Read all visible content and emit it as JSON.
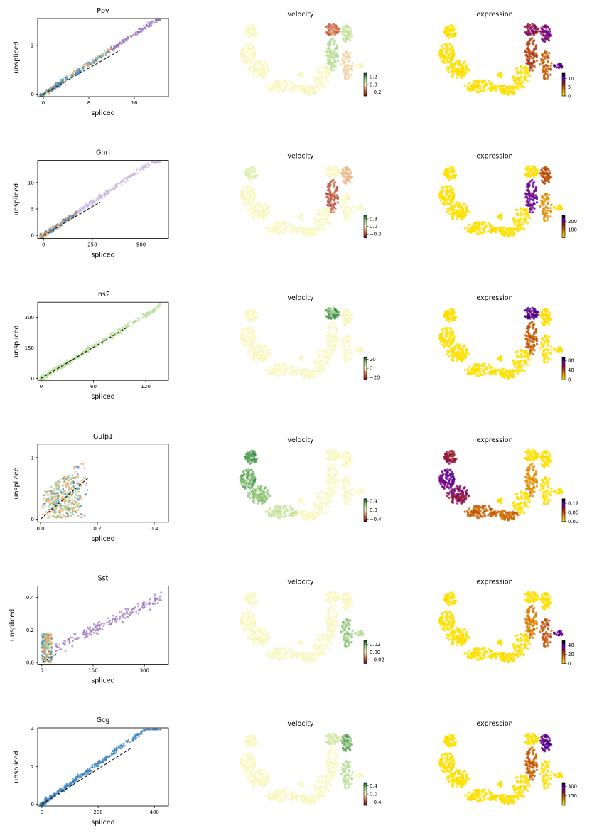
{
  "chart_data": {
    "type": "scatter",
    "layout": "6 rows x 3 columns: phase portrait, velocity embedding, expression embedding",
    "panel_titles": {
      "velocity": "velocity",
      "expression": "expression"
    },
    "xlabel": "spliced",
    "ylabel": "unspliced",
    "velocity_colormap": [
      "#8b0f1f",
      "#d97a52",
      "#fbfbc8",
      "#a8d68a",
      "#0f6b2c"
    ],
    "expression_colormap": [
      "#ffe800",
      "#f0a000",
      "#c25400",
      "#8e1030",
      "#6a00c8",
      "#000000"
    ],
    "point_colors": {
      "blue": "#3f86bf",
      "orange": "#f4a25c",
      "green": "#9ccf8c",
      "purple": "#9b74c0",
      "lavender": "#cbb8e2",
      "lightgreen": "#b5dd9a"
    },
    "rows": [
      {
        "gene": "Ppy",
        "xlim": [
          -1,
          22
        ],
        "ylim": [
          -0.1,
          3.1
        ],
        "xticks": [
          0,
          8,
          16
        ],
        "yticks": [
          0,
          2
        ],
        "xtick_labels": [
          "0",
          "8",
          "16"
        ],
        "ytick_labels": [
          "0",
          "2"
        ],
        "fit_line": [
          [
            0,
            0
          ],
          [
            13.5,
            1.8
          ]
        ],
        "velocity_colorbar": {
          "range": [
            -0.3,
            0.3
          ],
          "ticks": [
            0.2,
            0.0,
            -0.2
          ],
          "tick_labels": [
            "0.2",
            "0.0",
            "−0.2"
          ]
        },
        "expression_colorbar": {
          "range": [
            0,
            13
          ],
          "ticks": [
            10,
            5,
            0
          ],
          "tick_labels": [
            "10",
            "5",
            "0"
          ]
        }
      },
      {
        "gene": "Ghrl",
        "xlim": [
          -30,
          640
        ],
        "ylim": [
          -0.6,
          14.2
        ],
        "xticks": [
          0,
          250,
          500
        ],
        "yticks": [
          0,
          5,
          10
        ],
        "xtick_labels": [
          "0",
          "250",
          "500"
        ],
        "ytick_labels": [
          "0",
          "5",
          "10"
        ],
        "fit_line": [
          [
            0,
            0
          ],
          [
            290,
            6.3
          ]
        ],
        "velocity_colorbar": {
          "range": [
            -0.45,
            0.45
          ],
          "ticks": [
            0.3,
            0.0,
            -0.3
          ],
          "tick_labels": [
            "0.3",
            "0.0",
            "−0.3"
          ]
        },
        "expression_colorbar": {
          "range": [
            0,
            280
          ],
          "ticks": [
            200,
            100
          ],
          "tick_labels": [
            "200",
            "100"
          ]
        }
      },
      {
        "gene": "Ins2",
        "xlim": [
          -4,
          146
        ],
        "ylim": [
          -10,
          375
        ],
        "xticks": [
          0,
          60,
          120
        ],
        "yticks": [
          0,
          150,
          300
        ],
        "xtick_labels": [
          "0",
          "60",
          "120"
        ],
        "ytick_labels": [
          "0",
          "150",
          "300"
        ],
        "fit_line": [
          [
            0,
            0
          ],
          [
            100,
            255
          ]
        ],
        "velocity_colorbar": {
          "range": [
            -25,
            25
          ],
          "ticks": [
            20,
            0,
            -20
          ],
          "tick_labels": [
            "20",
            "0",
            "−20"
          ]
        },
        "expression_colorbar": {
          "range": [
            0,
            95
          ],
          "ticks": [
            80,
            40,
            0
          ],
          "tick_labels": [
            "80",
            "40",
            "0"
          ]
        }
      },
      {
        "gene": "Gulp1",
        "xlim": [
          -0.01,
          0.45
        ],
        "ylim": [
          -0.05,
          1.22
        ],
        "xticks": [
          0.0,
          0.2,
          0.4
        ],
        "yticks": [
          0,
          1
        ],
        "xtick_labels": [
          "0.0",
          "0.2",
          "0.4"
        ],
        "ytick_labels": [
          "0",
          "1"
        ],
        "fit_line": [
          [
            0,
            0
          ],
          [
            0.17,
            0.68
          ]
        ],
        "velocity_colorbar": {
          "range": [
            -0.5,
            0.5
          ],
          "ticks": [
            0.4,
            0.0,
            -0.4
          ],
          "tick_labels": [
            "0.4",
            "0.0",
            "−0.4"
          ]
        },
        "expression_colorbar": {
          "range": [
            0,
            0.15
          ],
          "ticks": [
            0.12,
            0.06,
            0.0
          ],
          "tick_labels": [
            "0.12",
            "0.06",
            "0.00"
          ]
        }
      },
      {
        "gene": "Sst",
        "xlim": [
          -12,
          370
        ],
        "ylim": [
          -0.01,
          0.47
        ],
        "xticks": [
          0,
          150,
          300
        ],
        "yticks": [
          0.0,
          0.2,
          0.4
        ],
        "xtick_labels": [
          "0",
          "150",
          "300"
        ],
        "ytick_labels": [
          "0.0",
          "0.2",
          "0.4"
        ],
        "fit_line": [
          [
            0,
            0
          ],
          [
            45,
            0.055
          ]
        ],
        "velocity_colorbar": {
          "range": [
            -0.03,
            0.03
          ],
          "ticks": [
            0.02,
            0.0,
            -0.02
          ],
          "tick_labels": [
            "0.02",
            "0.00",
            "−0.02"
          ]
        },
        "expression_colorbar": {
          "range": [
            0,
            50
          ],
          "ticks": [
            40,
            20,
            0
          ],
          "tick_labels": [
            "40",
            "20",
            "0"
          ]
        }
      },
      {
        "gene": "Gcg",
        "xlim": [
          -15,
          450
        ],
        "ylim": [
          -0.1,
          4.05
        ],
        "xticks": [
          0,
          200,
          400
        ],
        "yticks": [
          0,
          2,
          4
        ],
        "xtick_labels": [
          "0",
          "200",
          "400"
        ],
        "ytick_labels": [
          "0",
          "2",
          "4"
        ],
        "fit_line": [
          [
            0,
            0
          ],
          [
            320,
            3.0
          ]
        ],
        "velocity_colorbar": {
          "range": [
            -0.55,
            0.55
          ],
          "ticks": [
            0.4,
            0.0,
            -0.4
          ],
          "tick_labels": [
            "0.4",
            "0.0",
            "−0.4"
          ]
        },
        "expression_colorbar": {
          "range": [
            0,
            360
          ],
          "ticks": [
            300,
            150
          ],
          "tick_labels": [
            "300",
            "150"
          ]
        }
      }
    ]
  }
}
